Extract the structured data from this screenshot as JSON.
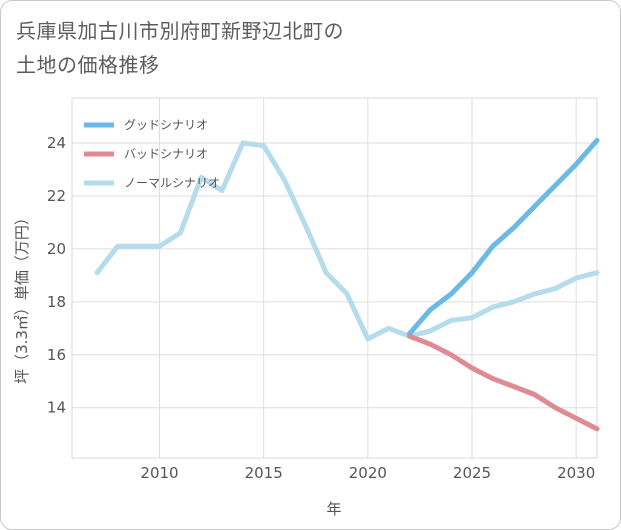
{
  "title_line1": "兵庫県加古川市別府町新野辺北町の",
  "title_line2": "土地の価格推移",
  "chart_data": {
    "type": "line",
    "xlabel": "年",
    "ylabel": "坪（3.3㎡）単価（万円）",
    "xlim": [
      2005.8,
      2031
    ],
    "ylim": [
      12.1,
      25.7
    ],
    "xticks": [
      2010,
      2015,
      2020,
      2025,
      2030
    ],
    "xtick_labels": [
      "2010",
      "2015",
      "2020",
      "2025",
      "2030"
    ],
    "yticks": [
      14,
      16,
      18,
      20,
      22,
      24
    ],
    "ytick_labels": [
      "14",
      "16",
      "18",
      "20",
      "22",
      "24"
    ],
    "legend_position": "top-left",
    "series": [
      {
        "name": "グッドシナリオ",
        "color": "#6bb9e8",
        "x": [
          2022,
          2023,
          2024,
          2025,
          2026,
          2027,
          2028,
          2029,
          2030,
          2031
        ],
        "values": [
          16.8,
          17.7,
          18.3,
          19.1,
          20.1,
          20.8,
          21.6,
          22.4,
          23.2,
          24.1
        ]
      },
      {
        "name": "バッドシナリオ",
        "color": "#de8b94",
        "x": [
          2022,
          2023,
          2024,
          2025,
          2026,
          2027,
          2028,
          2029,
          2030,
          2031
        ],
        "values": [
          16.7,
          16.4,
          16.0,
          15.5,
          15.1,
          14.8,
          14.5,
          14.0,
          13.6,
          13.2
        ]
      },
      {
        "name": "ノーマルシナリオ",
        "color": "#b4dcec",
        "x": [
          2007,
          2008,
          2009,
          2010,
          2011,
          2012,
          2013,
          2014,
          2015,
          2016,
          2017,
          2018,
          2019,
          2020,
          2021,
          2022,
          2023,
          2024,
          2025,
          2026,
          2027,
          2028,
          2029,
          2030,
          2031
        ],
        "values": [
          19.1,
          20.1,
          20.1,
          20.1,
          20.6,
          22.7,
          22.2,
          24.0,
          23.9,
          22.6,
          20.9,
          19.1,
          18.3,
          16.6,
          17.0,
          16.7,
          16.9,
          17.3,
          17.4,
          17.8,
          18.0,
          18.3,
          18.5,
          18.9,
          19.1
        ]
      }
    ]
  }
}
